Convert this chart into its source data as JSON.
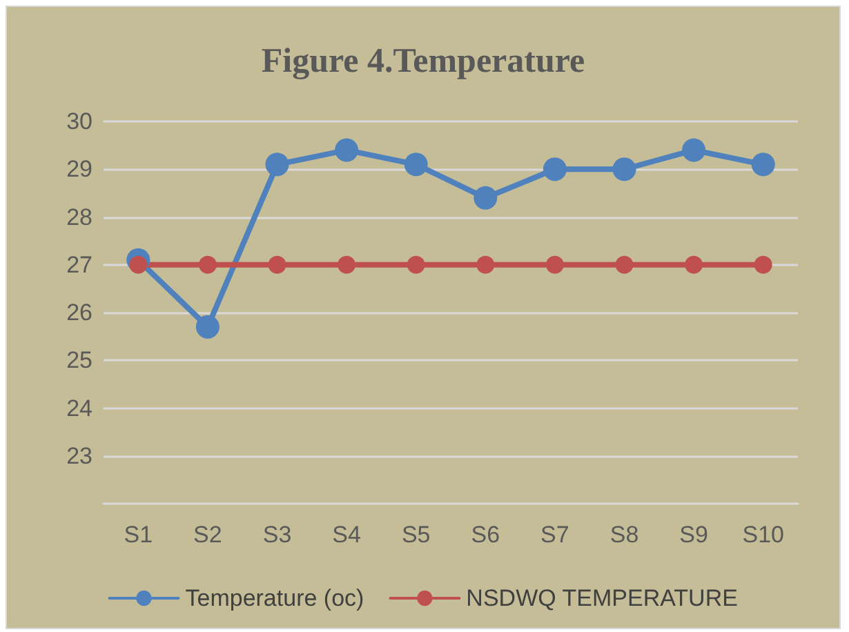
{
  "chart_data": {
    "type": "line",
    "title": "Figure 4.Temperature",
    "categories": [
      "S1",
      "S2",
      "S3",
      "S4",
      "S5",
      "S6",
      "S7",
      "S8",
      "S9",
      "S10"
    ],
    "series": [
      {
        "name": "Temperature (oc)",
        "color": "#4f81bd",
        "values": [
          27.1,
          25.7,
          29.1,
          29.4,
          29.1,
          28.4,
          29.0,
          29.0,
          29.4,
          29.1
        ]
      },
      {
        "name": "NSDWQ TEMPERATURE",
        "color": "#c0504d",
        "values": [
          27,
          27,
          27,
          27,
          27,
          27,
          27,
          27,
          27,
          27
        ]
      }
    ],
    "ylim": [
      22,
      30
    ],
    "yticks": [
      23,
      24,
      25,
      26,
      27,
      28,
      29,
      30
    ],
    "grid": "y",
    "legend": "bottom",
    "marker": "circle",
    "line_style": "solid"
  }
}
